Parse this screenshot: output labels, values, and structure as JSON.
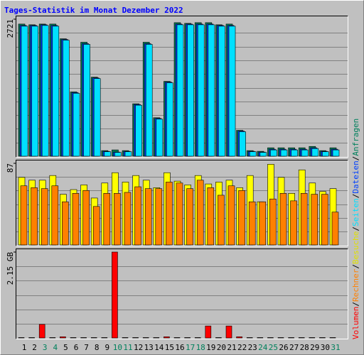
{
  "chart_data": {
    "type": "bar",
    "title": "Tages-Statistik im Monat Dezember 2022",
    "categories": [
      "1",
      "2",
      "3",
      "4",
      "5",
      "6",
      "7",
      "8",
      "9",
      "10",
      "11",
      "12",
      "13",
      "14",
      "15",
      "16",
      "17",
      "18",
      "19",
      "20",
      "21",
      "22",
      "23",
      "24",
      "25",
      "26",
      "27",
      "28",
      "29",
      "30",
      "31"
    ],
    "category_colors": [
      "#000000",
      "#000000",
      "#00805c",
      "#00805c",
      "#000000",
      "#000000",
      "#000000",
      "#000000",
      "#000000",
      "#00805c",
      "#00805c",
      "#000000",
      "#000000",
      "#000000",
      "#000000",
      "#000000",
      "#00805c",
      "#00805c",
      "#000000",
      "#000000",
      "#000000",
      "#000000",
      "#000000",
      "#00805c",
      "#00805c",
      "#000000",
      "#000000",
      "#000000",
      "#000000",
      "#000000",
      "#00805c"
    ],
    "legend_separator": "/",
    "panels": [
      {
        "type": "bar",
        "ylim": [
          0,
          2721
        ],
        "yticks": [
          2721
        ],
        "series": [
          {
            "name": "Anfragen",
            "color": "#00805c",
            "values": [
              2624,
              2610,
              2624,
              2624,
              2332,
              1277,
              2263,
              1569,
              111,
              125,
              111,
              1041,
              2263,
              764,
              1486,
              2652,
              2638,
              2652,
              2652,
              2610,
              2624,
              514,
              111,
              97,
              167,
              167,
              167,
              167,
              194,
              111,
              167
            ]
          },
          {
            "name": "Dateien",
            "color": "#0040ff",
            "values": [
              2596,
              2596,
              2610,
              2596,
              2318,
              1263,
              2235,
              1555,
              97,
              83,
              97,
              1027,
              2235,
              750,
              1472,
              2624,
              2624,
              2624,
              2624,
              2596,
              2596,
              500,
              97,
              83,
              139,
              139,
              139,
              139,
              167,
              97,
              139
            ]
          },
          {
            "name": "Seiten",
            "color": "#00e0ff",
            "values": [
              2582,
              2582,
              2596,
              2582,
              2304,
              1249,
              2221,
              1541,
              90,
              76,
              90,
              1013,
              2221,
              736,
              1458,
              2610,
              2610,
              2610,
              2610,
              2582,
              2582,
              486,
              90,
              76,
              125,
              125,
              125,
              125,
              153,
              90,
              125
            ]
          }
        ]
      },
      {
        "type": "bar",
        "ylim": [
          0,
          87
        ],
        "yticks": [
          87
        ],
        "series": [
          {
            "name": "Besuche",
            "color": "#ffff00",
            "values": [
              72,
              69,
              69,
              74,
              54,
              59,
              64,
              50,
              66,
              77,
              67,
              74,
              69,
              61,
              77,
              68,
              64,
              74,
              65,
              67,
              69,
              61,
              74,
              46,
              86,
              72,
              55,
              80,
              66,
              57,
              60
            ]
          },
          {
            "name": "Rechner",
            "color": "#ff8000",
            "values": [
              63,
              61,
              60,
              63,
              46,
              55,
              58,
              41,
              55,
              55,
              56,
              62,
              60,
              60,
              67,
              66,
              60,
              69,
              61,
              53,
              63,
              58,
              46,
              46,
              49,
              55,
              47,
              55,
              54,
              54,
              35
            ]
          }
        ]
      },
      {
        "type": "bar",
        "ylim": [
          0,
          2.15
        ],
        "yticks": [
          {
            "value": 2.15,
            "label": "2.15 GB"
          }
        ],
        "series": [
          {
            "name": "Volumen",
            "color": "#ff0000",
            "values": [
              0.01,
              0.01,
              0.34,
              0.01,
              0.03,
              0.01,
              0.01,
              0.01,
              0.01,
              2.15,
              0.01,
              0.01,
              0.01,
              0.01,
              0.03,
              0.01,
              0.01,
              0.01,
              0.3,
              0.01,
              0.3,
              0.03,
              0.01,
              0.01,
              0.01,
              0.01,
              0.01,
              0.01,
              0.01,
              0.01,
              0.01
            ]
          }
        ]
      }
    ]
  }
}
